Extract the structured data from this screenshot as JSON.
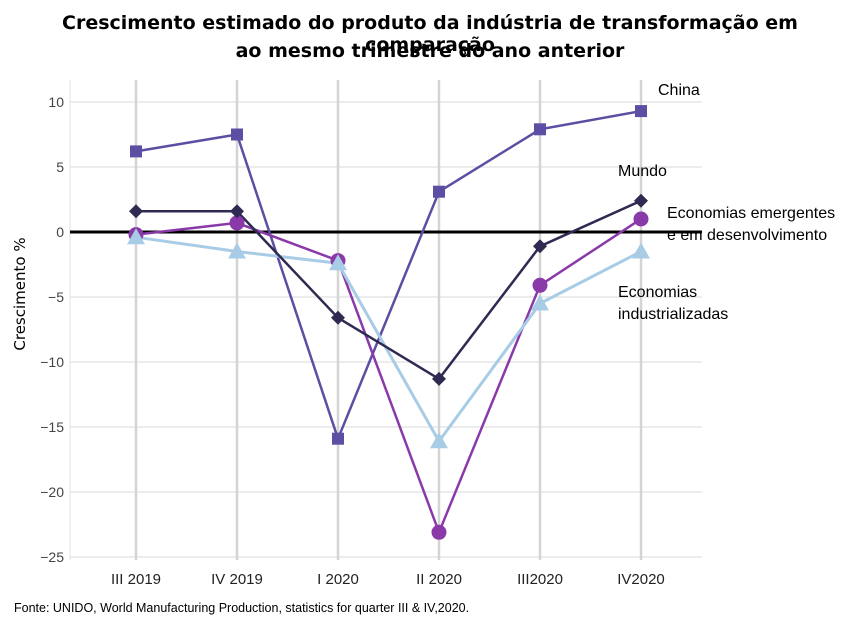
{
  "chart_data": {
    "type": "line",
    "title_lines": [
      "Crescimento estimado do produto da indústria de transformação em comparação",
      "ao mesmo trimestre do ano anterior"
    ],
    "ylabel": "Crescimento %",
    "xlabel": "",
    "categories": [
      "III 2019",
      "IV 2019",
      "I 2020",
      "II 2020",
      "III2020",
      "IV2020"
    ],
    "ylim": [
      -25,
      10
    ],
    "yticks": [
      10,
      5,
      0,
      -5,
      -10,
      -15,
      -20,
      -25
    ],
    "grid": true,
    "zero_line": true,
    "series": [
      {
        "name": "China",
        "label_lines": [
          "China"
        ],
        "marker": "square",
        "color": "#5b4ea3",
        "values": [
          6.2,
          7.5,
          -15.9,
          3.1,
          7.9,
          9.3
        ]
      },
      {
        "name": "Mundo",
        "label_lines": [
          "Mundo"
        ],
        "marker": "diamond",
        "color": "#2e2a52",
        "values": [
          1.6,
          1.6,
          -6.6,
          -11.3,
          -1.1,
          2.4
        ]
      },
      {
        "name": "Economias emergentes e em desenvolvimento",
        "label_lines": [
          "Economias emergentes",
          "e em desenvolvimento"
        ],
        "marker": "circle",
        "color": "#8a3aa8",
        "values": [
          -0.2,
          0.7,
          -2.2,
          -23.1,
          -4.1,
          1.0
        ]
      },
      {
        "name": "Economias industrializadas",
        "label_lines": [
          "Economias",
          "industrializadas"
        ],
        "marker": "triangle",
        "color": "#a9cce6",
        "values": [
          -0.4,
          -1.5,
          -2.4,
          -16.1,
          -5.5,
          -1.5
        ]
      }
    ],
    "source": "Fonte: UNIDO, World Manufacturing Production, statistics for quarter III & IV,2020."
  }
}
